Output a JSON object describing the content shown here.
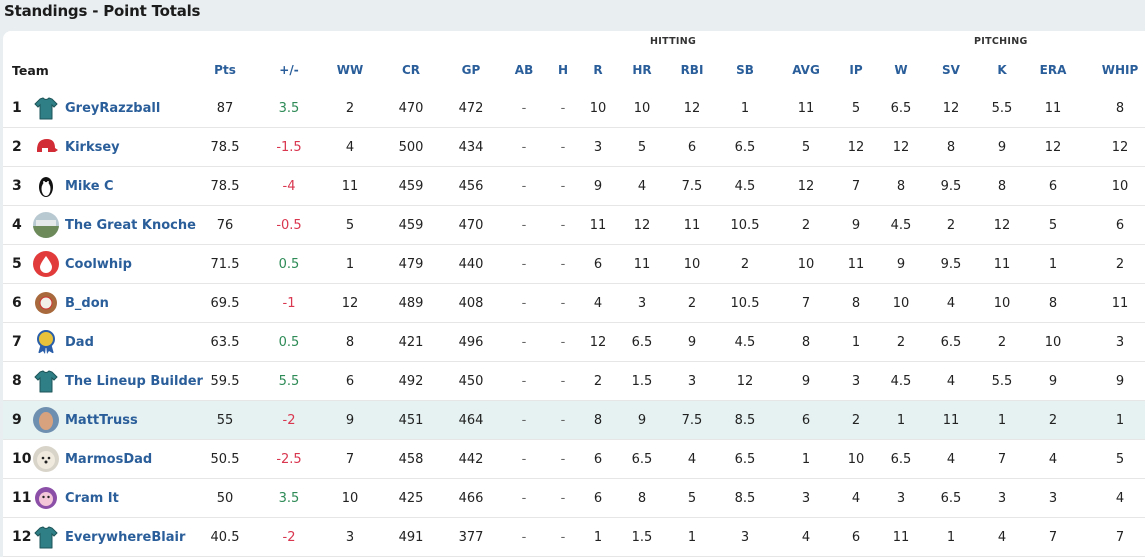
{
  "page_title": "Standings - Point Totals",
  "groups": {
    "hitting": "HITTING",
    "pitching": "PITCHING"
  },
  "columns": {
    "team": "Team",
    "pts": "Pts",
    "pm": "+/-",
    "ww": "WW",
    "cr": "CR",
    "gp": "GP",
    "ab": "AB",
    "h": "H",
    "r": "R",
    "hr": "HR",
    "rbi": "RBI",
    "sb": "SB",
    "avg": "AVG",
    "ip": "IP",
    "w": "W",
    "sv": "SV",
    "k": "K",
    "era": "ERA",
    "whip": "WHIP"
  },
  "rows": [
    {
      "rank": "1",
      "team": "GreyRazzball",
      "icon": "jersey-icon",
      "pts": "87",
      "pm": "3.5",
      "ww": "2",
      "cr": "470",
      "gp": "472",
      "ab": "-",
      "h": "-",
      "r": "10",
      "hr": "10",
      "rbi": "12",
      "sb": "1",
      "avg": "11",
      "ip": "5",
      "w": "6.5",
      "sv": "12",
      "k": "5.5",
      "era": "11",
      "whip": "8"
    },
    {
      "rank": "2",
      "team": "Kirksey",
      "icon": "helmet-icon",
      "pts": "78.5",
      "pm": "-1.5",
      "ww": "4",
      "cr": "500",
      "gp": "434",
      "ab": "-",
      "h": "-",
      "r": "3",
      "hr": "5",
      "rbi": "6",
      "sb": "6.5",
      "avg": "5",
      "ip": "12",
      "w": "12",
      "sv": "8",
      "k": "9",
      "era": "12",
      "whip": "12"
    },
    {
      "rank": "3",
      "team": "Mike C",
      "icon": "penguin-icon",
      "pts": "78.5",
      "pm": "-4",
      "ww": "11",
      "cr": "459",
      "gp": "456",
      "ab": "-",
      "h": "-",
      "r": "9",
      "hr": "4",
      "rbi": "7.5",
      "sb": "4.5",
      "avg": "12",
      "ip": "7",
      "w": "8",
      "sv": "9.5",
      "k": "8",
      "era": "6",
      "whip": "10"
    },
    {
      "rank": "4",
      "team": "The Great Knoche",
      "icon": "stadium-photo-icon",
      "pts": "76",
      "pm": "-0.5",
      "ww": "5",
      "cr": "459",
      "gp": "470",
      "ab": "-",
      "h": "-",
      "r": "11",
      "hr": "12",
      "rbi": "11",
      "sb": "10.5",
      "avg": "2",
      "ip": "9",
      "w": "4.5",
      "sv": "2",
      "k": "12",
      "era": "5",
      "whip": "6"
    },
    {
      "rank": "5",
      "team": "Coolwhip",
      "icon": "water-drop-icon",
      "pts": "71.5",
      "pm": "0.5",
      "ww": "1",
      "cr": "479",
      "gp": "440",
      "ab": "-",
      "h": "-",
      "r": "6",
      "hr": "11",
      "rbi": "10",
      "sb": "2",
      "avg": "10",
      "ip": "11",
      "w": "9",
      "sv": "9.5",
      "k": "11",
      "era": "1",
      "whip": "2"
    },
    {
      "rank": "6",
      "team": "B_don",
      "icon": "baseball-glove-icon",
      "pts": "69.5",
      "pm": "-1",
      "ww": "12",
      "cr": "489",
      "gp": "408",
      "ab": "-",
      "h": "-",
      "r": "4",
      "hr": "3",
      "rbi": "2",
      "sb": "10.5",
      "avg": "7",
      "ip": "8",
      "w": "10",
      "sv": "4",
      "k": "10",
      "era": "8",
      "whip": "11"
    },
    {
      "rank": "7",
      "team": "Dad",
      "icon": "award-ribbon-icon",
      "pts": "63.5",
      "pm": "0.5",
      "ww": "8",
      "cr": "421",
      "gp": "496",
      "ab": "-",
      "h": "-",
      "r": "12",
      "hr": "6.5",
      "rbi": "9",
      "sb": "4.5",
      "avg": "8",
      "ip": "1",
      "w": "2",
      "sv": "6.5",
      "k": "2",
      "era": "10",
      "whip": "3"
    },
    {
      "rank": "8",
      "team": "The Lineup Builder",
      "icon": "jersey-icon",
      "pts": "59.5",
      "pm": "5.5",
      "ww": "6",
      "cr": "492",
      "gp": "450",
      "ab": "-",
      "h": "-",
      "r": "2",
      "hr": "1.5",
      "rbi": "3",
      "sb": "12",
      "avg": "9",
      "ip": "3",
      "w": "4.5",
      "sv": "4",
      "k": "5.5",
      "era": "9",
      "whip": "9"
    },
    {
      "rank": "9",
      "team": "MattTruss",
      "icon": "photo-avatar-icon",
      "pts": "55",
      "pm": "-2",
      "ww": "9",
      "cr": "451",
      "gp": "464",
      "ab": "-",
      "h": "-",
      "r": "8",
      "hr": "9",
      "rbi": "7.5",
      "sb": "8.5",
      "avg": "6",
      "ip": "2",
      "w": "1",
      "sv": "11",
      "k": "1",
      "era": "2",
      "whip": "1",
      "highlight": true
    },
    {
      "rank": "10",
      "team": "MarmosDad",
      "icon": "dog-photo-icon",
      "pts": "50.5",
      "pm": "-2.5",
      "ww": "7",
      "cr": "458",
      "gp": "442",
      "ab": "-",
      "h": "-",
      "r": "6",
      "hr": "6.5",
      "rbi": "4",
      "sb": "6.5",
      "avg": "1",
      "ip": "10",
      "w": "6.5",
      "sv": "4",
      "k": "7",
      "era": "4",
      "whip": "5"
    },
    {
      "rank": "11",
      "team": "Cram It",
      "icon": "cartoon-face-icon",
      "pts": "50",
      "pm": "3.5",
      "ww": "10",
      "cr": "425",
      "gp": "466",
      "ab": "-",
      "h": "-",
      "r": "6",
      "hr": "8",
      "rbi": "5",
      "sb": "8.5",
      "avg": "3",
      "ip": "4",
      "w": "3",
      "sv": "6.5",
      "k": "3",
      "era": "3",
      "whip": "4"
    },
    {
      "rank": "12",
      "team": "EverywhereBlair",
      "icon": "jersey-icon",
      "pts": "40.5",
      "pm": "-2",
      "ww": "3",
      "cr": "491",
      "gp": "377",
      "ab": "-",
      "h": "-",
      "r": "1",
      "hr": "1.5",
      "rbi": "1",
      "sb": "3",
      "avg": "4",
      "ip": "6",
      "w": "11",
      "sv": "1",
      "k": "4",
      "era": "7",
      "whip": "7"
    }
  ],
  "colors": {
    "positive": "#2e8b57",
    "negative": "#d9364f",
    "link": "#2a5e9a",
    "highlight_row": "#e6f2f2"
  }
}
